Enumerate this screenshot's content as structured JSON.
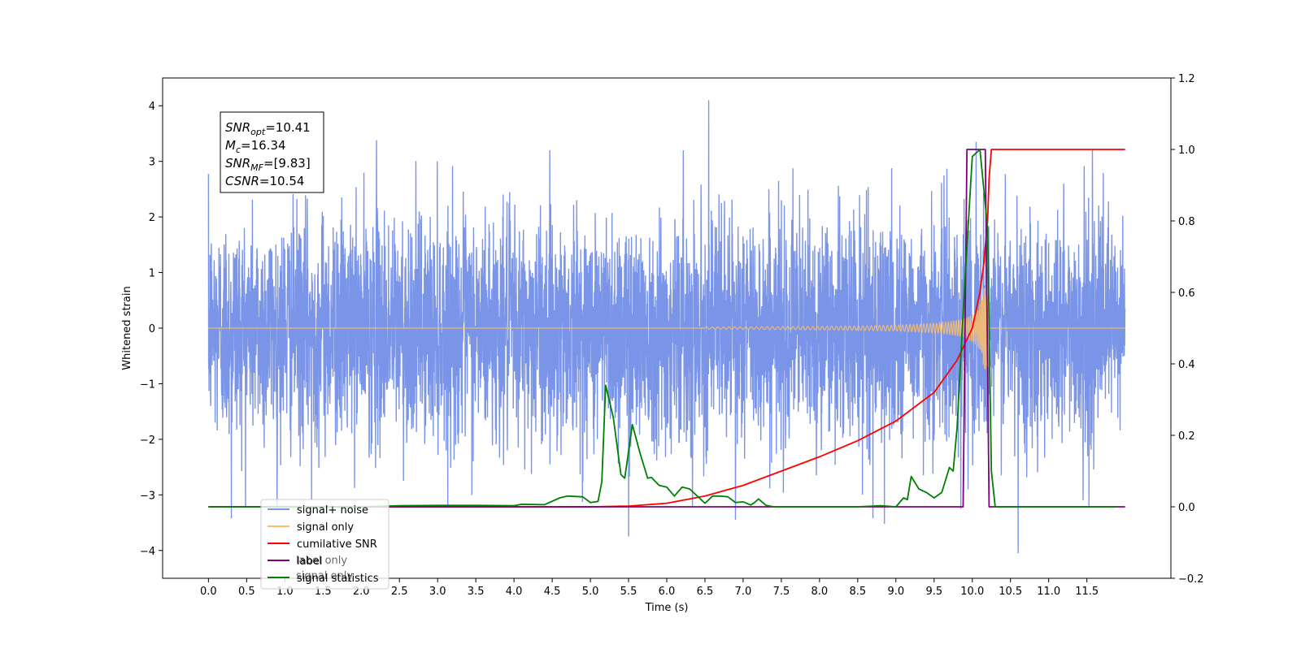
{
  "chart_data": {
    "type": "line",
    "title": "",
    "xlabel": "Time (s)",
    "ylabel": "Whitened strain",
    "xlim": [
      -0.6,
      12.6
    ],
    "ylim": [
      -4.5,
      4.5
    ],
    "y2lim": [
      -0.2,
      1.2
    ],
    "x_ticks": [
      0.0,
      0.5,
      1.0,
      1.5,
      2.0,
      2.5,
      3.0,
      3.5,
      4.0,
      4.5,
      5.0,
      5.5,
      6.0,
      6.5,
      7.0,
      7.5,
      8.0,
      8.5,
      9.0,
      9.5,
      10.0,
      10.5,
      11.0,
      11.5
    ],
    "x_tick_labels": [
      "0.0",
      "0.5",
      "1.0",
      "1.5",
      "2.0",
      "2.5",
      "3.0",
      "3.5",
      "4.0",
      "4.5",
      "5.0",
      "5.5",
      "6.0",
      "6.5",
      "7.0",
      "7.5",
      "8.0",
      "8.5",
      "9.0",
      "9.5",
      "10.0",
      "10.5",
      "11.0",
      "11.5"
    ],
    "y_ticks": [
      4,
      3,
      2,
      1,
      0,
      -1,
      -2,
      -3,
      -4
    ],
    "y_tick_labels": [
      "4",
      "3",
      "2",
      "1",
      "0",
      "−1",
      "−2",
      "−3",
      "−4"
    ],
    "y2_ticks": [
      1.2,
      1.0,
      0.8,
      0.6,
      0.4,
      0.2,
      0.0,
      -0.2
    ],
    "y2_tick_labels": [
      "1.2",
      "1.0",
      "0.8",
      "0.6",
      "0.4",
      "0.2",
      "0.0",
      "−0.2"
    ],
    "grid": false,
    "legend_position": "bottom-left",
    "series": [
      {
        "name": "signal+ noise",
        "axis": "left",
        "color": "#7a94e8",
        "x_range": [
          0.0,
          12.0
        ],
        "amplitude_sigma": 1.0,
        "spikes": [
          [
            0.3,
            -3.42
          ],
          [
            0.9,
            -2.55
          ],
          [
            1.35,
            -3.1
          ],
          [
            2.2,
            3.38
          ],
          [
            5.5,
            -3.75
          ],
          [
            6.55,
            4.1
          ],
          [
            6.9,
            -3.45
          ],
          [
            8.7,
            -3.42
          ],
          [
            8.85,
            -3.52
          ],
          [
            9.85,
            -3.25
          ],
          [
            10.05,
            3.35
          ],
          [
            10.6,
            -4.05
          ],
          [
            11.45,
            -3.1
          ]
        ]
      },
      {
        "name": "signal only",
        "axis": "left",
        "color": "#ffbf66",
        "chirp_start": 6.5,
        "merger_time": 10.22,
        "peak_amplitude": 0.75
      },
      {
        "name": "cumilative SNR",
        "axis": "right",
        "color": "#ff0000",
        "x": [
          0.0,
          5.0,
          5.5,
          6.0,
          6.5,
          7.0,
          7.5,
          8.0,
          8.5,
          9.0,
          9.5,
          9.8,
          10.0,
          10.1,
          10.15,
          10.2,
          10.22,
          10.25,
          12.0
        ],
        "y": [
          0.0,
          0.0,
          0.002,
          0.01,
          0.03,
          0.06,
          0.1,
          0.14,
          0.185,
          0.24,
          0.32,
          0.41,
          0.5,
          0.6,
          0.68,
          0.8,
          0.92,
          1.0,
          1.0
        ]
      },
      {
        "name": "label",
        "axis": "right",
        "color": "#800080",
        "x": [
          0.0,
          9.88,
          9.93,
          10.17,
          10.22,
          12.0
        ],
        "y": [
          0.0,
          0.0,
          1.0,
          1.0,
          0.0,
          0.0
        ]
      },
      {
        "name": "signal statistics",
        "axis": "right",
        "color": "#008000",
        "x": [
          0.0,
          2.0,
          2.5,
          3.0,
          3.5,
          4.0,
          4.1,
          4.4,
          4.6,
          4.7,
          4.9,
          5.0,
          5.1,
          5.15,
          5.2,
          5.3,
          5.4,
          5.45,
          5.55,
          5.65,
          5.75,
          5.8,
          5.9,
          6.0,
          6.1,
          6.2,
          6.3,
          6.4,
          6.5,
          6.6,
          6.7,
          6.8,
          6.9,
          7.0,
          7.1,
          7.15,
          7.2,
          7.3,
          7.4,
          8.5,
          8.8,
          9.0,
          9.1,
          9.15,
          9.2,
          9.3,
          9.4,
          9.5,
          9.6,
          9.7,
          9.75,
          9.8,
          9.9,
          10.0,
          10.1,
          10.2,
          10.25,
          10.3,
          11.9
        ],
        "y": [
          0.0,
          0.0,
          0.003,
          0.004,
          0.004,
          0.003,
          0.007,
          0.006,
          0.025,
          0.03,
          0.028,
          0.012,
          0.015,
          0.07,
          0.34,
          0.25,
          0.09,
          0.08,
          0.23,
          0.15,
          0.08,
          0.082,
          0.06,
          0.055,
          0.03,
          0.055,
          0.05,
          0.03,
          0.01,
          0.03,
          0.03,
          0.028,
          0.012,
          0.014,
          0.005,
          0.012,
          0.022,
          0.004,
          0.0,
          0.0,
          0.003,
          0.0,
          0.025,
          0.02,
          0.085,
          0.05,
          0.04,
          0.025,
          0.04,
          0.11,
          0.1,
          0.22,
          0.62,
          0.98,
          1.0,
          0.78,
          0.1,
          0.0,
          0.0
        ]
      }
    ],
    "annotation": {
      "lines": [
        {
          "base": "SNR",
          "sub": "opt",
          "value": "=10.41"
        },
        {
          "base": "M",
          "sub": "c",
          "value": "=16.34"
        },
        {
          "base": "SNR",
          "sub": "MF",
          "value": "=[9.83]"
        },
        {
          "base": "CSNR",
          "sub": "",
          "value": "=10.54"
        }
      ]
    },
    "legend_entries": [
      {
        "label": "signal+ noise",
        "color": "#7a94e8"
      },
      {
        "label": "signal only",
        "color": "#ffbf66"
      },
      {
        "label": "cumilative SNR",
        "color": "#ff0000"
      },
      {
        "label": "label",
        "color": "#800080"
      },
      {
        "label": "signal statistics",
        "color": "#008000"
      }
    ],
    "legend_hidden_text": [
      "label only",
      "signal only"
    ]
  }
}
